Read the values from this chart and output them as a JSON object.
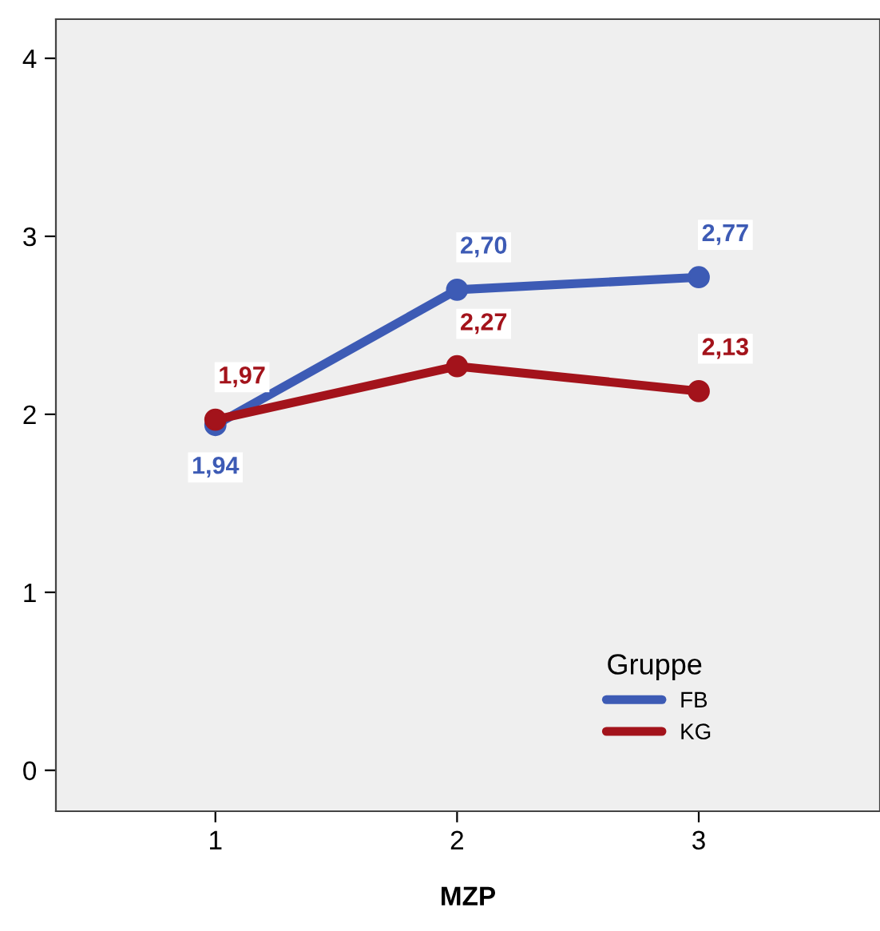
{
  "chart_data": {
    "type": "line",
    "xlabel": "MZP",
    "legend_title": "Gruppe",
    "x": [
      1,
      2,
      3
    ],
    "xlim": [
      0.34,
      3.75
    ],
    "xticks": [
      1,
      2,
      3
    ],
    "ylim": [
      -0.23,
      4.22
    ],
    "yticks": [
      0,
      1,
      2,
      3,
      4
    ],
    "grid": false,
    "legend": "bottom right",
    "marker": "circle",
    "line_style": "solid",
    "series": [
      {
        "name": "FB",
        "color": "#3d5bb5",
        "values": [
          1.94,
          2.7,
          2.77
        ],
        "value_labels": [
          "1,94",
          "2,70",
          "2,77"
        ]
      },
      {
        "name": "KG",
        "color": "#a3131b",
        "values": [
          1.97,
          2.27,
          2.13
        ],
        "value_labels": [
          "1,97",
          "2,27",
          "2,13"
        ]
      }
    ]
  }
}
